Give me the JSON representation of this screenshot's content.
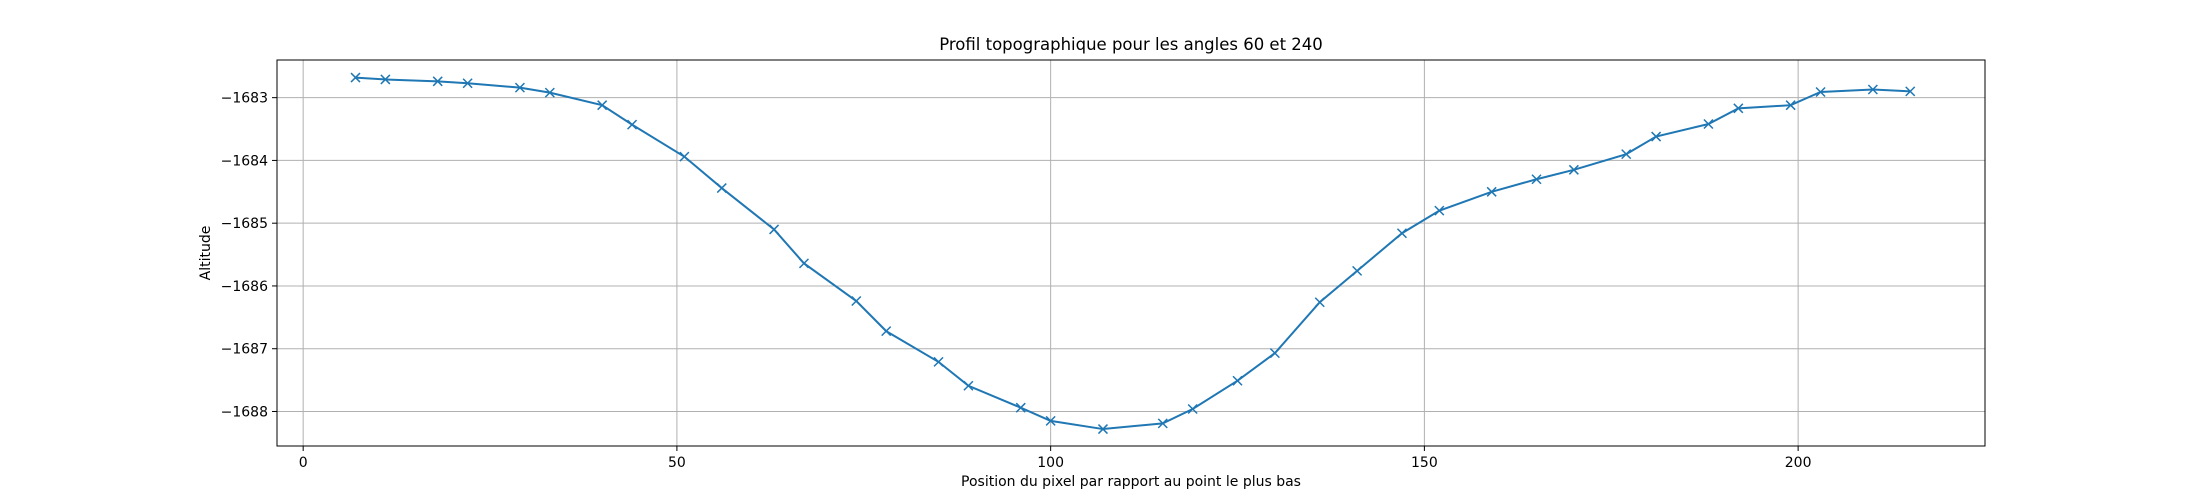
{
  "chart_data": {
    "type": "line",
    "title": "Profil topographique pour les angles 60 et 240",
    "xlabel": "Position du pixel par rapport au point le plus bas",
    "ylabel": "Altitude",
    "xlim": [
      -3.5,
      225
    ],
    "ylim": [
      -1688.55,
      -1682.4
    ],
    "xticks": [
      0,
      50,
      100,
      150,
      200
    ],
    "yticks": [
      -1688,
      -1687,
      -1686,
      -1685,
      -1684,
      -1683
    ],
    "grid": true,
    "color": "#1f77b4",
    "marker": "x",
    "series": [
      {
        "x": [
          7,
          11,
          18,
          22,
          29,
          33,
          40,
          44,
          51,
          56,
          63,
          67,
          74,
          78,
          85,
          89,
          96,
          100,
          107,
          115,
          119,
          125,
          130,
          136,
          141,
          147,
          152,
          159,
          165,
          170,
          177,
          181,
          188,
          192,
          199,
          203,
          210,
          215
        ],
        "y": [
          -1682.68,
          -1682.71,
          -1682.74,
          -1682.77,
          -1682.84,
          -1682.92,
          -1683.12,
          -1683.43,
          -1683.94,
          -1684.44,
          -1685.1,
          -1685.64,
          -1686.24,
          -1686.72,
          -1687.21,
          -1687.59,
          -1687.94,
          -1688.15,
          -1688.28,
          -1688.19,
          -1687.96,
          -1687.51,
          -1687.07,
          -1686.26,
          -1685.76,
          -1685.16,
          -1684.8,
          -1684.5,
          -1684.3,
          -1684.15,
          -1683.9,
          -1683.62,
          -1683.42,
          -1683.17,
          -1683.12,
          -1682.91,
          -1682.87,
          -1682.9
        ]
      }
    ]
  }
}
